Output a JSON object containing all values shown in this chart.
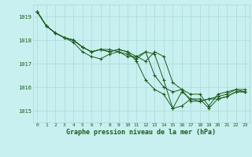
{
  "title": "Graphe pression niveau de la mer (hPa)",
  "background_color": "#c8f0f0",
  "grid_color": "#a8d8d8",
  "line_color": "#1a5c1a",
  "marker_color": "#1a5c1a",
  "xlim": [
    -0.5,
    23.5
  ],
  "ylim": [
    1014.5,
    1019.5
  ],
  "yticks": [
    1015,
    1016,
    1017,
    1018,
    1019
  ],
  "xticks": [
    0,
    1,
    2,
    3,
    4,
    5,
    6,
    7,
    8,
    9,
    10,
    11,
    12,
    13,
    14,
    15,
    16,
    17,
    18,
    19,
    20,
    21,
    22,
    23
  ],
  "series": [
    [
      1019.2,
      1018.6,
      1018.3,
      1018.1,
      1017.9,
      1017.5,
      1017.3,
      1017.2,
      1017.4,
      1017.5,
      1017.3,
      1017.3,
      1017.1,
      1017.5,
      1017.3,
      1016.2,
      1015.9,
      1015.7,
      1015.7,
      1015.2,
      1015.7,
      1015.8,
      1015.9,
      1015.8
    ],
    [
      1019.2,
      1018.6,
      1018.3,
      1018.1,
      1018.0,
      1017.7,
      1017.5,
      1017.6,
      1017.5,
      1017.6,
      1017.5,
      1017.3,
      1017.5,
      1017.4,
      1016.3,
      1015.1,
      1015.2,
      1015.5,
      1015.5,
      1015.1,
      1015.5,
      1015.6,
      1015.8,
      1015.8
    ],
    [
      1019.2,
      1018.6,
      1018.3,
      1018.1,
      1018.0,
      1017.7,
      1017.5,
      1017.6,
      1017.5,
      1017.6,
      1017.5,
      1017.1,
      1016.3,
      1015.9,
      1015.7,
      1015.1,
      1015.8,
      1015.5,
      1015.4,
      1015.5,
      1015.5,
      1015.6,
      1015.8,
      1015.8
    ],
    [
      1019.2,
      1018.6,
      1018.3,
      1018.1,
      1018.0,
      1017.7,
      1017.5,
      1017.6,
      1017.6,
      1017.5,
      1017.4,
      1017.2,
      1017.5,
      1016.5,
      1016.0,
      1015.8,
      1015.9,
      1015.4,
      1015.4,
      1015.5,
      1015.6,
      1015.7,
      1015.9,
      1015.9
    ]
  ]
}
